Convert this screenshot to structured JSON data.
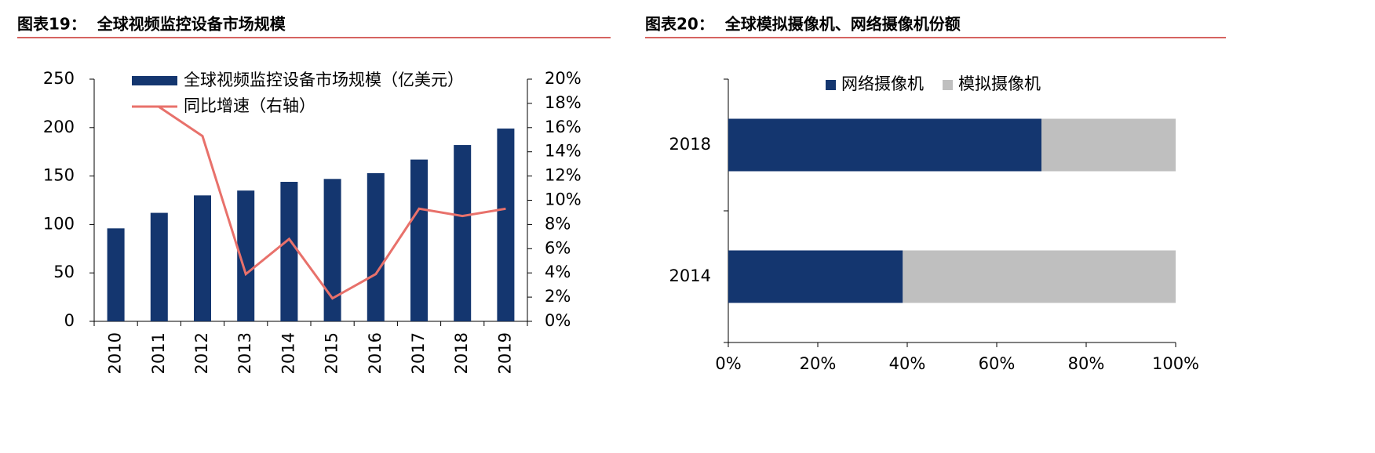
{
  "chart_data": [
    {
      "type": "bar",
      "title": "图表19：  全球视频监控设备市场规模",
      "categories": [
        "2010",
        "2011",
        "2012",
        "2013",
        "2014",
        "2015",
        "2016",
        "2017",
        "2018",
        "2019"
      ],
      "series": [
        {
          "name": "全球视频监控设备市场规模（亿美元）",
          "color": "#14366f",
          "values": [
            96,
            112,
            130,
            135,
            144,
            147,
            153,
            167,
            182,
            199
          ]
        },
        {
          "name": "同比增速（右轴）",
          "color": "#e8716b",
          "type": "line",
          "axis": "y2",
          "values": [
            null,
            17.7,
            15.3,
            3.9,
            6.8,
            1.9,
            3.9,
            9.3,
            8.7,
            9.3
          ]
        }
      ],
      "ylim": [
        0,
        250
      ],
      "yticks": [
        0,
        50,
        100,
        150,
        200,
        250
      ],
      "y2lim": [
        0,
        20
      ],
      "y2ticks": [
        {
          "value": 0,
          "label": "0%"
        },
        {
          "value": 2,
          "label": "2%"
        },
        {
          "value": 4,
          "label": "4%"
        },
        {
          "value": 6,
          "label": "6%"
        },
        {
          "value": 8,
          "label": "8%"
        },
        {
          "value": 10,
          "label": "10%"
        },
        {
          "value": 12,
          "label": "12%"
        },
        {
          "value": 14,
          "label": "14%"
        },
        {
          "value": 16,
          "label": "16%"
        },
        {
          "value": 18,
          "label": "18%"
        },
        {
          "value": 20,
          "label": "20%"
        }
      ],
      "grid": false,
      "legend": "top"
    },
    {
      "type": "bar",
      "orientation": "horizontal",
      "stacked": true,
      "title": "图表20：  全球模拟摄像机、网络摄像机份额",
      "categories": [
        "2014",
        "2018"
      ],
      "series": [
        {
          "name": "网络摄像机",
          "color": "#14366f",
          "values": [
            39,
            70
          ]
        },
        {
          "name": "模拟摄像机",
          "color": "#bfbfbf",
          "values": [
            61,
            30
          ]
        }
      ],
      "xlim": [
        0,
        100
      ],
      "xticks": [
        {
          "value": 0,
          "label": "0%"
        },
        {
          "value": 20,
          "label": "20%"
        },
        {
          "value": 40,
          "label": "40%"
        },
        {
          "value": 60,
          "label": "60%"
        },
        {
          "value": 80,
          "label": "80%"
        },
        {
          "value": 100,
          "label": "100%"
        }
      ],
      "grid": false,
      "legend": "top"
    }
  ]
}
